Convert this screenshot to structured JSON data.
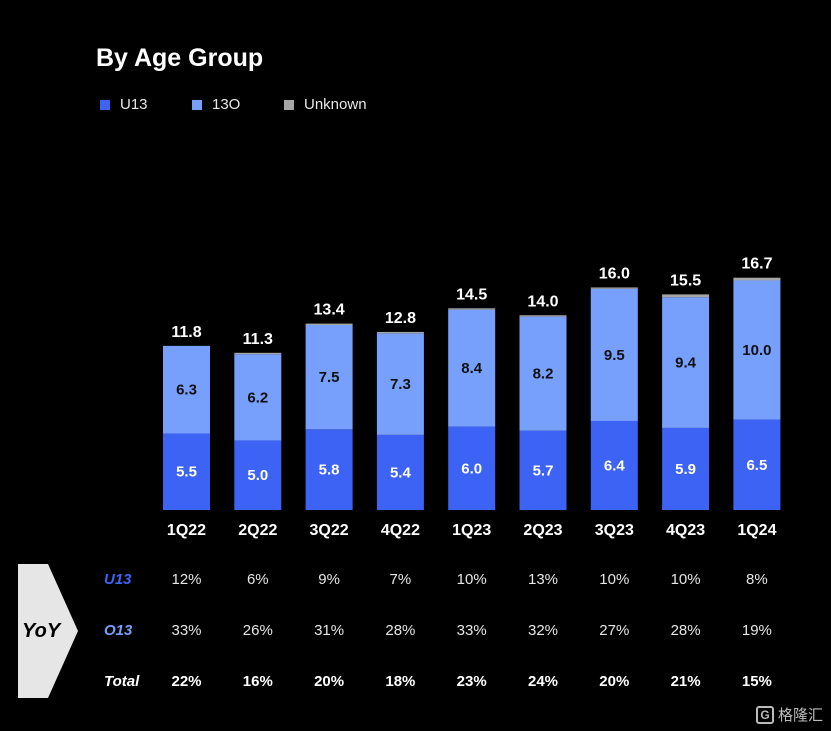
{
  "chart_data": {
    "type": "bar",
    "stacked": true,
    "title": "By Age Group",
    "categories": [
      "1Q22",
      "2Q22",
      "3Q22",
      "4Q22",
      "1Q23",
      "2Q23",
      "3Q23",
      "4Q23",
      "1Q24"
    ],
    "series": [
      {
        "name": "U13",
        "color": "#3d63f5",
        "values": [
          5.5,
          5.0,
          5.8,
          5.4,
          6.0,
          5.7,
          6.4,
          5.9,
          6.5
        ],
        "labels": [
          "5.5",
          "5.0",
          "5.8",
          "5.4",
          "6.0",
          "5.7",
          "6.4",
          "5.9",
          "6.5"
        ]
      },
      {
        "name": "13O",
        "color": "#779ffc",
        "values": [
          6.3,
          6.2,
          7.5,
          7.3,
          8.4,
          8.2,
          9.5,
          9.4,
          10.0
        ],
        "labels": [
          "6.3",
          "6.2",
          "7.5",
          "7.3",
          "8.4",
          "8.2",
          "9.5",
          "9.4",
          "10.0"
        ]
      },
      {
        "name": "Unknown",
        "color": "#a6a6a6",
        "values": [
          0.0,
          0.1,
          0.1,
          0.1,
          0.1,
          0.1,
          0.1,
          0.2,
          0.2
        ]
      }
    ],
    "totals": [
      11.8,
      11.3,
      13.4,
      12.8,
      14.5,
      14.0,
      16.0,
      15.5,
      16.7
    ],
    "total_labels": [
      "11.8",
      "11.3",
      "13.4",
      "12.8",
      "14.5",
      "14.0",
      "16.0",
      "15.5",
      "16.7"
    ],
    "ylim": [
      0,
      17.5
    ],
    "grid": false,
    "legend_position": "top-left"
  },
  "yoy": {
    "label": "YoY",
    "rows": [
      {
        "label": "U13",
        "color": "#3d63f5",
        "values": [
          "12%",
          "6%",
          "9%",
          "7%",
          "10%",
          "13%",
          "10%",
          "10%",
          "8%"
        ]
      },
      {
        "label": "O13",
        "color": "#779ffc",
        "values": [
          "33%",
          "26%",
          "31%",
          "28%",
          "33%",
          "32%",
          "27%",
          "28%",
          "19%"
        ]
      },
      {
        "label": "Total",
        "color": "#ffffff",
        "values": [
          "22%",
          "16%",
          "20%",
          "18%",
          "23%",
          "24%",
          "20%",
          "21%",
          "15%"
        ]
      }
    ]
  },
  "watermark": {
    "icon": "G",
    "text": "格隆汇"
  }
}
